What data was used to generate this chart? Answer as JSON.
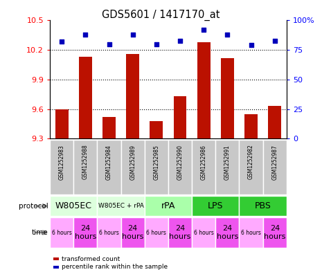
{
  "title": "GDS5601 / 1417170_at",
  "samples": [
    "GSM1252983",
    "GSM1252988",
    "GSM1252984",
    "GSM1252989",
    "GSM1252985",
    "GSM1252990",
    "GSM1252986",
    "GSM1252991",
    "GSM1252982",
    "GSM1252987"
  ],
  "transformed_counts": [
    9.6,
    10.13,
    9.52,
    10.16,
    9.48,
    9.73,
    10.28,
    10.12,
    9.55,
    9.63
  ],
  "percentile_ranks": [
    82,
    88,
    80,
    88,
    80,
    83,
    92,
    88,
    79,
    83
  ],
  "ylim_left": [
    9.3,
    10.5
  ],
  "ylim_right": [
    0,
    100
  ],
  "yticks_left": [
    9.3,
    9.6,
    9.9,
    10.2,
    10.5
  ],
  "yticks_right": [
    0,
    25,
    50,
    75,
    100
  ],
  "bar_color": "#bb1100",
  "dot_color": "#0000bb",
  "protocols": [
    {
      "label": "W805EC",
      "start": 0,
      "end": 2,
      "color": "#ddffdd"
    },
    {
      "label": "W805EC + rPA",
      "start": 2,
      "end": 4,
      "color": "#ddffdd"
    },
    {
      "label": "rPA",
      "start": 4,
      "end": 6,
      "color": "#aaffaa"
    },
    {
      "label": "LPS",
      "start": 6,
      "end": 8,
      "color": "#33cc33"
    },
    {
      "label": "PBS",
      "start": 8,
      "end": 10,
      "color": "#33cc33"
    }
  ],
  "times": [
    {
      "label": "6 hours",
      "start": 0,
      "end": 1,
      "color": "#ffaaff",
      "small": true
    },
    {
      "label": "24\nhours",
      "start": 1,
      "end": 2,
      "color": "#ee55ee",
      "small": false
    },
    {
      "label": "6 hours",
      "start": 2,
      "end": 3,
      "color": "#ffaaff",
      "small": true
    },
    {
      "label": "24\nhours",
      "start": 3,
      "end": 4,
      "color": "#ee55ee",
      "small": false
    },
    {
      "label": "6 hours",
      "start": 4,
      "end": 5,
      "color": "#ffaaff",
      "small": true
    },
    {
      "label": "24\nhours",
      "start": 5,
      "end": 6,
      "color": "#ee55ee",
      "small": false
    },
    {
      "label": "6 hours",
      "start": 6,
      "end": 7,
      "color": "#ffaaff",
      "small": true
    },
    {
      "label": "24\nhours",
      "start": 7,
      "end": 8,
      "color": "#ee55ee",
      "small": false
    },
    {
      "label": "6 hours",
      "start": 8,
      "end": 9,
      "color": "#ffaaff",
      "small": true
    },
    {
      "label": "24\nhours",
      "start": 9,
      "end": 10,
      "color": "#ee55ee",
      "small": false
    }
  ],
  "legend_items": [
    {
      "label": "transformed count",
      "color": "#bb1100"
    },
    {
      "label": "percentile rank within the sample",
      "color": "#0000bb"
    }
  ],
  "sample_bg": "#c8c8c8",
  "grid_yticks": [
    9.6,
    9.9,
    10.2
  ]
}
